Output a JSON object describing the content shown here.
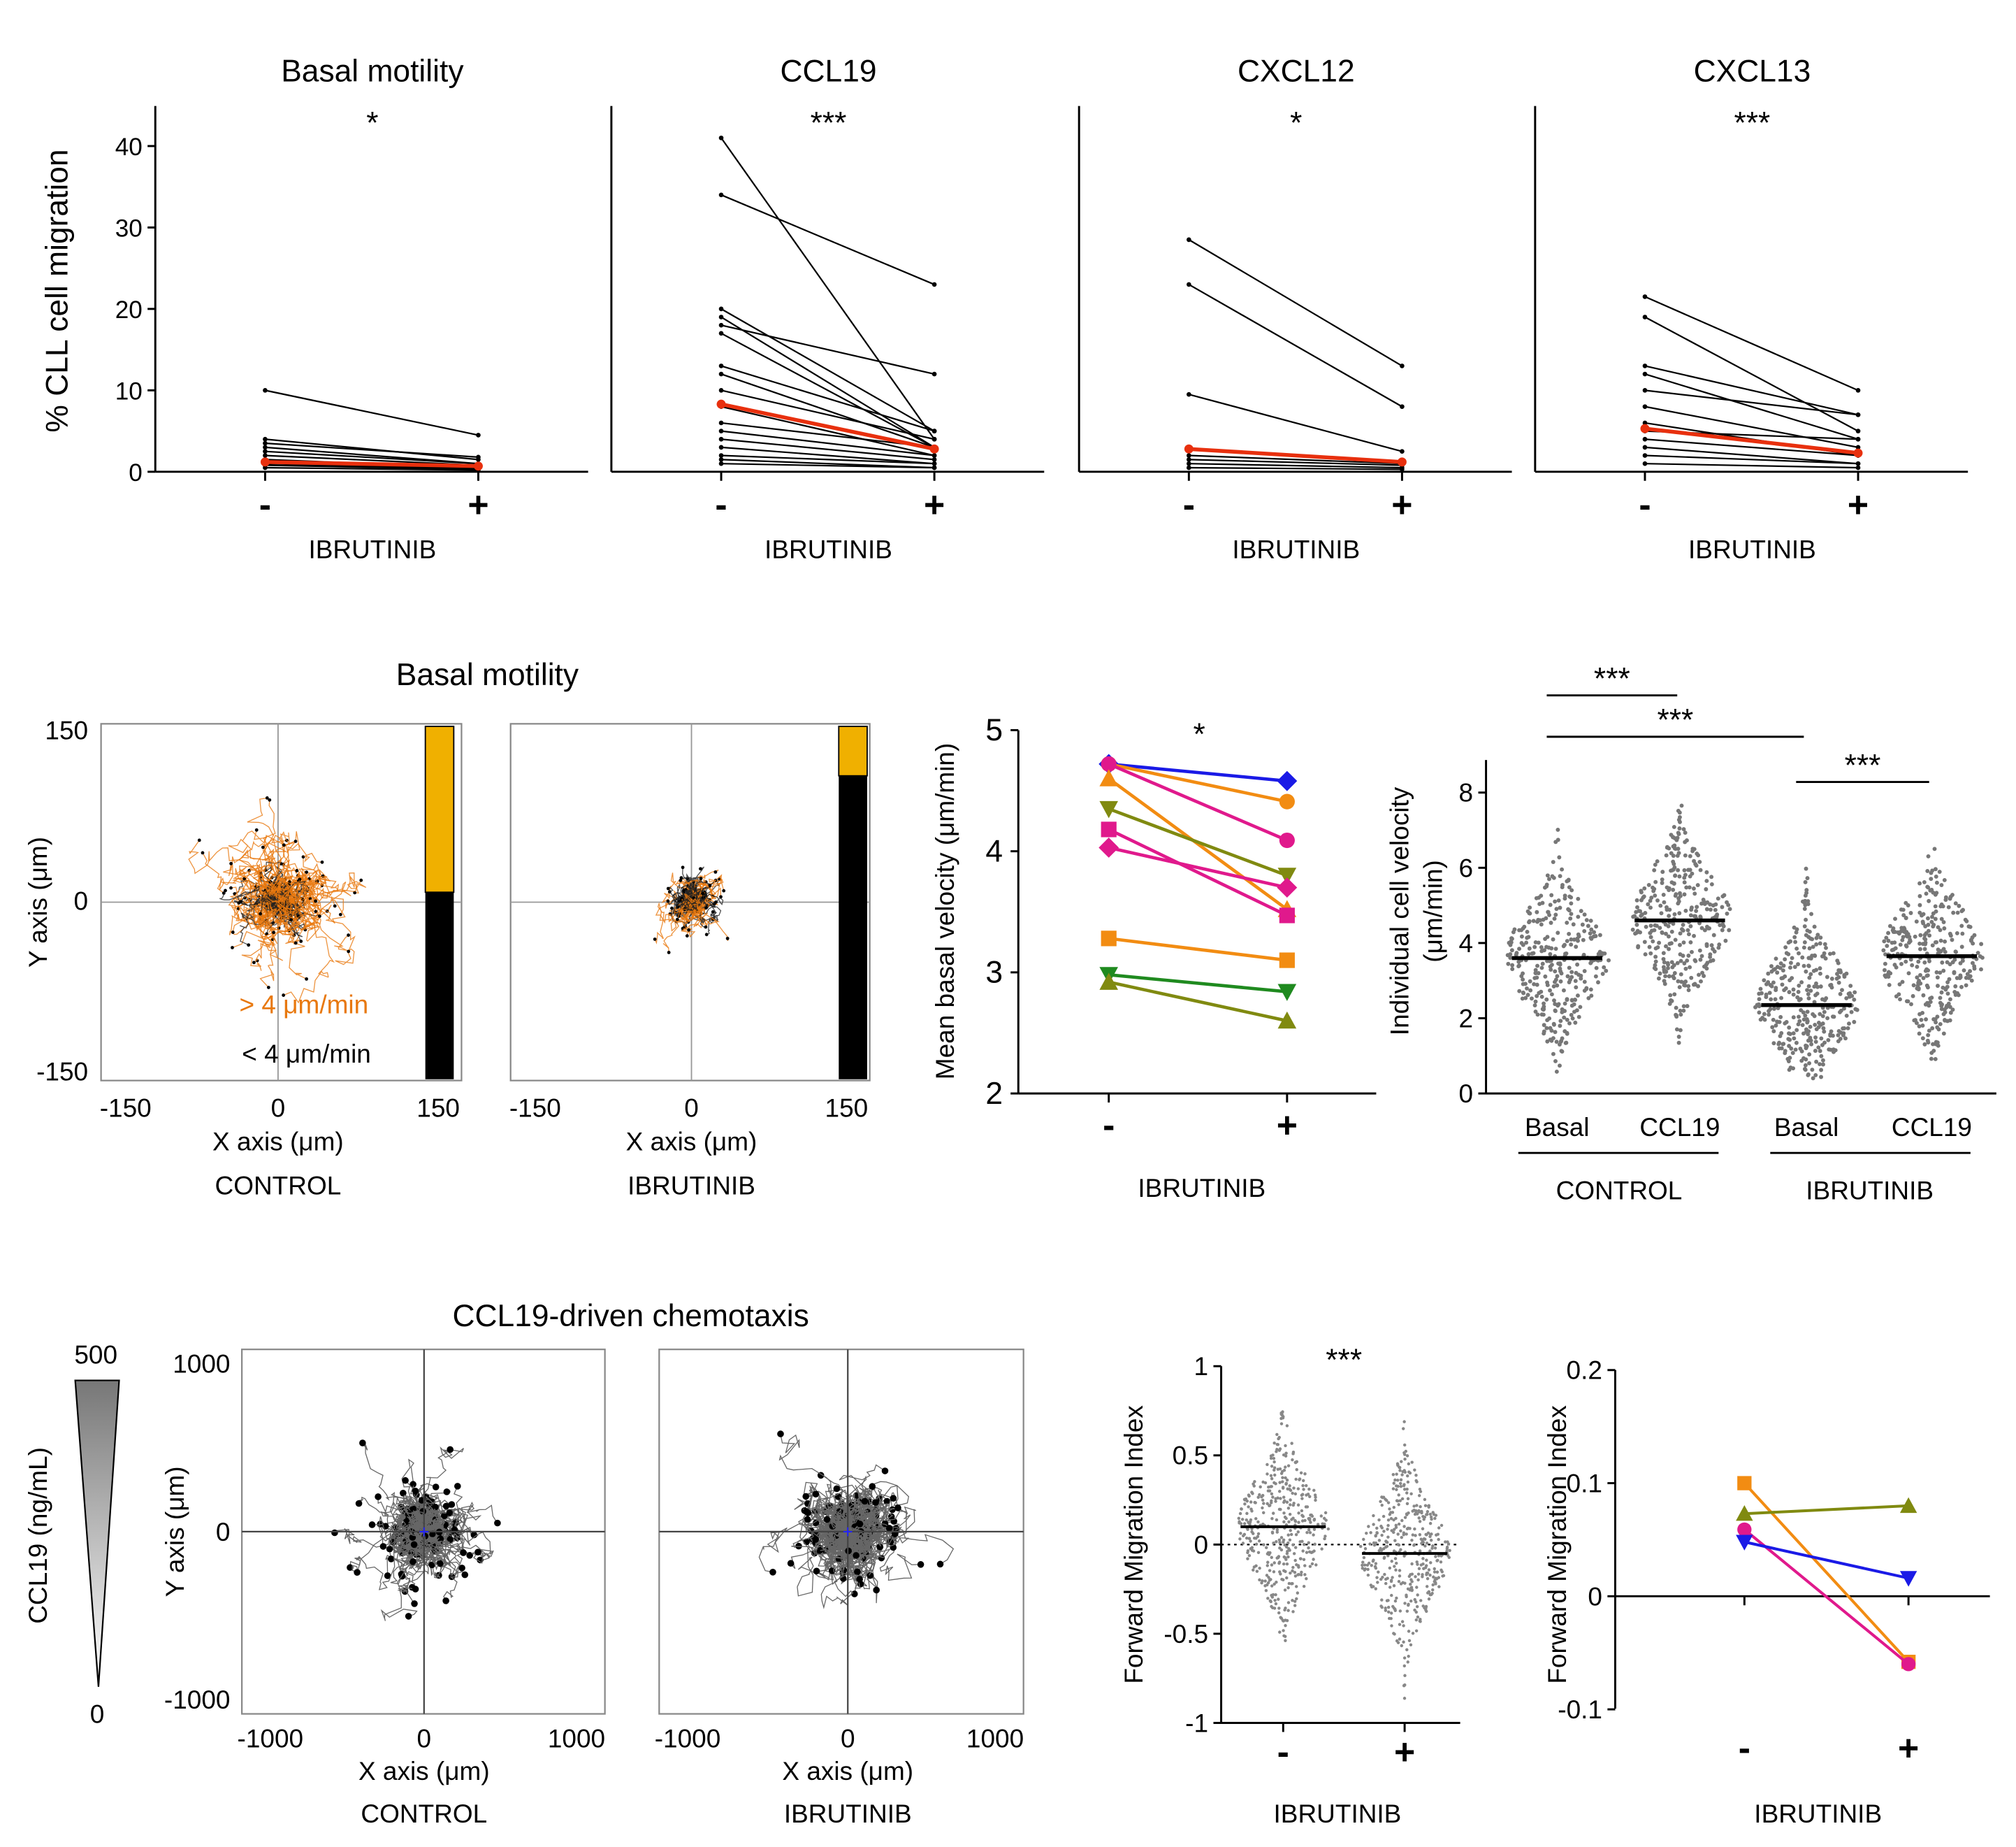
{
  "chart_data": [
    {
      "type": "line",
      "title": "Basal motility",
      "ylabel": "% CLL cell migration",
      "xlabel": "IBRUTINIB",
      "categories": [
        "-",
        "+"
      ],
      "significance": "*",
      "ylim": [
        0,
        45
      ],
      "yticks": [
        "0",
        "10",
        "20",
        "30",
        "40"
      ],
      "pairs": [
        [
          10,
          4.5
        ],
        [
          4,
          1.5
        ],
        [
          3.5,
          1.8
        ],
        [
          3,
          1
        ],
        [
          2.5,
          1
        ],
        [
          2,
          0.8
        ],
        [
          1.5,
          0.5
        ],
        [
          1,
          0.4
        ],
        [
          0.8,
          0.3
        ],
        [
          0.5,
          0.2
        ]
      ],
      "mean": [
        1.2,
        0.7
      ]
    },
    {
      "type": "line",
      "title": "CCL19",
      "xlabel": "IBRUTINIB",
      "categories": [
        "-",
        "+"
      ],
      "significance": "***",
      "ylim": [
        0,
        45
      ],
      "pairs": [
        [
          41,
          4
        ],
        [
          34,
          23
        ],
        [
          20,
          5
        ],
        [
          19,
          3
        ],
        [
          18,
          12
        ],
        [
          17,
          3
        ],
        [
          13,
          5
        ],
        [
          12,
          3
        ],
        [
          10,
          4
        ],
        [
          8,
          2
        ],
        [
          6,
          3
        ],
        [
          5,
          2
        ],
        [
          4,
          1.5
        ],
        [
          3,
          1
        ],
        [
          2,
          1
        ],
        [
          1.5,
          0.5
        ],
        [
          1,
          0.5
        ]
      ],
      "mean": [
        8.3,
        2.8
      ]
    },
    {
      "type": "line",
      "title": "CXCL12",
      "xlabel": "IBRUTINIB",
      "categories": [
        "-",
        "+"
      ],
      "significance": "*",
      "ylim": [
        0,
        45
      ],
      "pairs": [
        [
          28.5,
          13
        ],
        [
          23,
          8
        ],
        [
          9.5,
          2.5
        ],
        [
          2,
          1
        ],
        [
          1.5,
          0.8
        ],
        [
          1,
          0.5
        ],
        [
          0.5,
          0.3
        ]
      ],
      "mean": [
        2.8,
        1.2
      ]
    },
    {
      "type": "line",
      "title": "CXCL13",
      "xlabel": "IBRUTINIB",
      "categories": [
        "-",
        "+"
      ],
      "significance": "***",
      "ylim": [
        0,
        45
      ],
      "pairs": [
        [
          21.5,
          10
        ],
        [
          19,
          5
        ],
        [
          13,
          7
        ],
        [
          12,
          4
        ],
        [
          10,
          7
        ],
        [
          8,
          3
        ],
        [
          6,
          2
        ],
        [
          5,
          4
        ],
        [
          4,
          2
        ],
        [
          3,
          1
        ],
        [
          2,
          1
        ],
        [
          1,
          0.5
        ]
      ],
      "mean": [
        5.3,
        2.3
      ]
    },
    {
      "type": "scatter",
      "section_title": "Basal motility",
      "panels": [
        {
          "label": "CONTROL",
          "fraction_above_4": 0.47
        },
        {
          "label": "IBRUTINIB",
          "fraction_above_4": 0.14
        }
      ],
      "xlabel": "X axis (μm)",
      "ylabel": "Y axis (μm)",
      "xticks": [
        "-150",
        "0",
        "150"
      ],
      "yticks": [
        "150",
        "0",
        "-150"
      ],
      "legend": [
        {
          "label": "> 4 μm/min",
          "color": "#e8780e"
        },
        {
          "label": "< 4 μm/min",
          "color": "#000000"
        }
      ],
      "bar_colors": {
        "above": "#f0b000",
        "below": "#000000"
      }
    },
    {
      "type": "line",
      "ylabel": "Mean basal velocity (μm/min)",
      "xlabel": "IBRUTINIB",
      "categories": [
        "-",
        "+"
      ],
      "significance": "*",
      "ylim": [
        2,
        5
      ],
      "yticks": [
        "2",
        "3",
        "4",
        "5"
      ],
      "series": [
        {
          "color": "#1a1ae6",
          "marker": "diamond",
          "values": [
            4.72,
            4.58
          ]
        },
        {
          "color": "#f28c12",
          "marker": "circle",
          "values": [
            4.72,
            4.41
          ]
        },
        {
          "color": "#e0198c",
          "marker": "circle",
          "values": [
            4.72,
            4.09
          ]
        },
        {
          "color": "#f28c12",
          "marker": "triangle",
          "values": [
            4.6,
            3.52
          ]
        },
        {
          "color": "#808a10",
          "marker": "triangle-down",
          "values": [
            4.35,
            3.8
          ]
        },
        {
          "color": "#e0198c",
          "marker": "square",
          "values": [
            4.18,
            3.47
          ]
        },
        {
          "color": "#e0198c",
          "marker": "diamond",
          "values": [
            4.03,
            3.7
          ]
        },
        {
          "color": "#f28c12",
          "marker": "square",
          "values": [
            3.28,
            3.1
          ]
        },
        {
          "color": "#1f8a1f",
          "marker": "triangle-down",
          "values": [
            2.98,
            2.84
          ]
        },
        {
          "color": "#808a10",
          "marker": "triangle",
          "values": [
            2.92,
            2.6
          ]
        }
      ]
    },
    {
      "type": "scatter",
      "ylabel": [
        "Individual cell velocity",
        "(μm/min)"
      ],
      "categories": [
        "Basal",
        "CCL19",
        "Basal",
        "CCL19"
      ],
      "groups": [
        "CONTROL",
        "IBRUTINIB"
      ],
      "medians": [
        3.6,
        4.6,
        2.35,
        3.65
      ],
      "ranges": [
        [
          0.5,
          7.4
        ],
        [
          0.2,
          8.4
        ],
        [
          0.4,
          6.3
        ],
        [
          0.7,
          7.0
        ]
      ],
      "ylim": [
        0,
        9
      ],
      "yticks": [
        "0",
        "2",
        "4",
        "6",
        "8"
      ],
      "significance": [
        {
          "from": 0,
          "to": 1,
          "label": "***"
        },
        {
          "from": 0,
          "to": 2,
          "label": "***"
        },
        {
          "from": 2,
          "to": 3,
          "label": "***"
        }
      ]
    },
    {
      "type": "scatter",
      "section_title": "CCL19-driven chemotaxis",
      "colorbar": {
        "label": "CCL19 (ng/mL)",
        "max": "500",
        "min": "0"
      },
      "panels": [
        "CONTROL",
        "IBRUTINIB"
      ],
      "xlabel": "X axis (μm)",
      "ylabel": "Y axis (μm)",
      "xticks": [
        "-1000",
        "0",
        "1000"
      ],
      "yticks": [
        "1000",
        "0",
        "-1000"
      ]
    },
    {
      "type": "scatter",
      "ylabel": "Forward Migration Index",
      "xlabel": "IBRUTINIB",
      "categories": [
        "-",
        "+"
      ],
      "significance": "***",
      "medians": [
        0.1,
        -0.05
      ],
      "ranges": [
        [
          -0.55,
          0.75
        ],
        [
          -0.9,
          0.88
        ]
      ],
      "ylim": [
        -1,
        1
      ],
      "yticks": [
        "1",
        "0.5",
        "0",
        "-0.5",
        "-1"
      ]
    },
    {
      "type": "line",
      "ylabel": "Forward Migration Index",
      "xlabel": "IBRUTINIB",
      "categories": [
        "-",
        "+"
      ],
      "ylim": [
        -0.1,
        0.2
      ],
      "yticks": [
        "0.2",
        "0.1",
        "0",
        "-0.1"
      ],
      "series": [
        {
          "color": "#f28c12",
          "marker": "square",
          "values": [
            0.1,
            -0.058
          ]
        },
        {
          "color": "#808a10",
          "marker": "triangle",
          "values": [
            0.073,
            0.08
          ]
        },
        {
          "color": "#e0198c",
          "marker": "circle",
          "values": [
            0.059,
            -0.06
          ]
        },
        {
          "color": "#1a1ae6",
          "marker": "triangle-down",
          "values": [
            0.048,
            0.016
          ]
        }
      ]
    }
  ]
}
